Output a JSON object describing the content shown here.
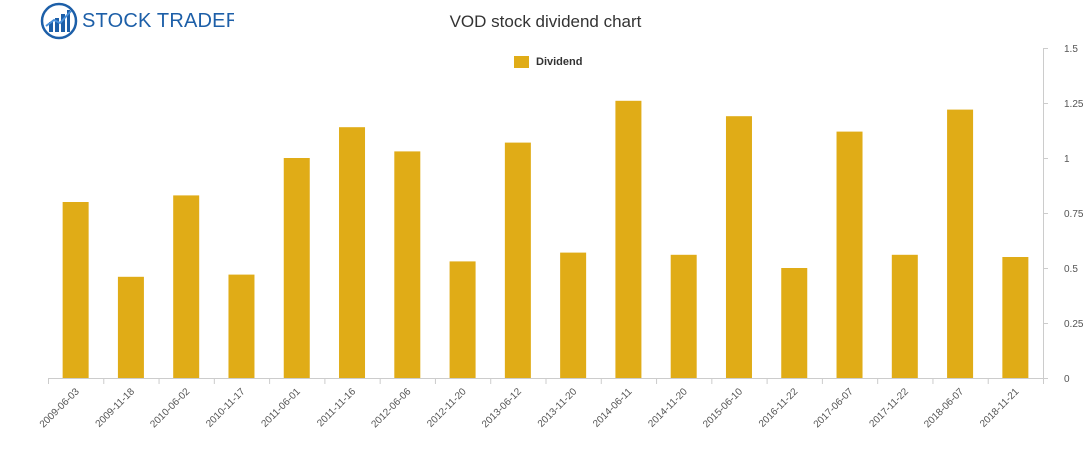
{
  "logo": {
    "text": "STOCK TRADERS",
    "icon": "bar-chart-globe-icon"
  },
  "chart_data": {
    "type": "bar",
    "title": "VOD stock dividend chart",
    "xlabel": "",
    "ylabel": "",
    "legend": {
      "placement": "top-center",
      "entries": [
        "Dividend"
      ]
    },
    "grid": false,
    "y_axis_side": "right",
    "ylim": [
      0,
      1.5
    ],
    "yticks": [
      "0",
      "0.25",
      "0.5",
      "0.75",
      "1",
      "1.25",
      "1.5"
    ],
    "categories": [
      "2009-06-03",
      "2009-11-18",
      "2010-06-02",
      "2010-11-17",
      "2011-06-01",
      "2011-11-16",
      "2012-06-06",
      "2012-11-20",
      "2013-06-12",
      "2013-11-20",
      "2014-06-11",
      "2014-11-20",
      "2015-06-10",
      "2016-11-22",
      "2017-06-07",
      "2017-11-22",
      "2018-06-07",
      "2018-11-21"
    ],
    "series": [
      {
        "name": "Dividend",
        "color": "#e0ac17",
        "values": [
          0.8,
          0.46,
          0.83,
          0.47,
          1.0,
          1.14,
          1.03,
          0.53,
          1.07,
          0.57,
          1.26,
          0.56,
          1.19,
          0.5,
          1.12,
          0.56,
          1.22,
          0.55
        ]
      }
    ]
  },
  "colors": {
    "bar": "#e0ac17",
    "axis": "#cccccc",
    "logo": "#1d5fa8"
  }
}
